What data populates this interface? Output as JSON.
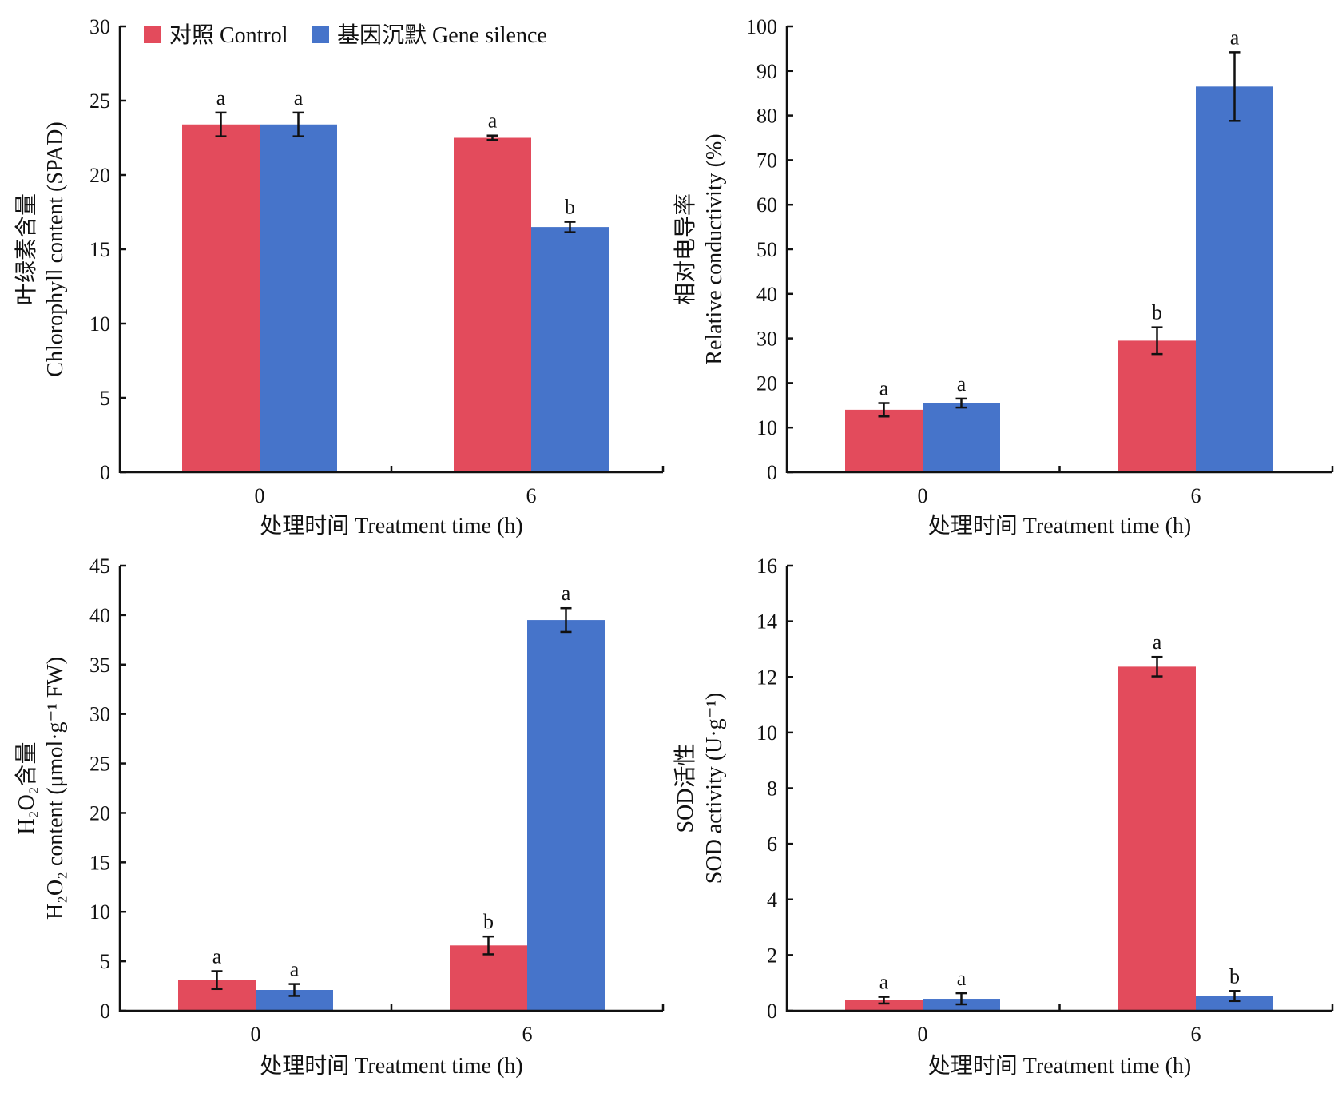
{
  "colors": {
    "control": "#e34b5c",
    "silence": "#4674ca",
    "axis": "#111111"
  },
  "legend": {
    "control": "对照 Control",
    "silence": "基因沉默 Gene silence"
  },
  "chart_data": [
    {
      "type": "bar",
      "categories": [
        "0",
        "6"
      ],
      "xlabel": "处理时间 Treatment time (h)",
      "ylabel_cn": "叶绿素含量",
      "ylabel_en": "Chlorophyll content (SPAD)",
      "ylim": [
        0,
        30
      ],
      "yticks": [
        "0",
        "5",
        "10",
        "15",
        "20",
        "25",
        "30"
      ],
      "series": [
        {
          "name": "对照 Control",
          "values": [
            23.4,
            22.5
          ],
          "errors": [
            0.8,
            0.15
          ],
          "letters": [
            "a",
            "a"
          ]
        },
        {
          "name": "基因沉默 Gene silence",
          "values": [
            23.4,
            16.5
          ],
          "errors": [
            0.8,
            0.35
          ],
          "letters": [
            "a",
            "b"
          ]
        }
      ]
    },
    {
      "type": "bar",
      "categories": [
        "0",
        "6"
      ],
      "xlabel": "处理时间 Treatment time (h)",
      "ylabel_cn": "相对电导率",
      "ylabel_en": "Relative conductivity (%)",
      "ylim": [
        0,
        100
      ],
      "yticks": [
        "0",
        "10",
        "20",
        "30",
        "40",
        "50",
        "60",
        "70",
        "80",
        "90",
        "100"
      ],
      "series": [
        {
          "name": "对照 Control",
          "values": [
            14,
            29.5
          ],
          "errors": [
            1.5,
            3
          ],
          "letters": [
            "a",
            "b"
          ]
        },
        {
          "name": "基因沉默 Gene silence",
          "values": [
            15.5,
            86.5
          ],
          "errors": [
            1,
            7.7
          ],
          "letters": [
            "a",
            "a"
          ]
        }
      ]
    },
    {
      "type": "bar",
      "categories": [
        "0",
        "6"
      ],
      "xlabel": "处理时间 Treatment time (h)",
      "ylabel_cn": "H₂O₂含量",
      "ylabel_en": "H₂O₂ content (μmol·g⁻¹ FW)",
      "ylim": [
        0,
        45
      ],
      "yticks": [
        "0",
        "5",
        "10",
        "15",
        "20",
        "25",
        "30",
        "35",
        "40",
        "45"
      ],
      "series": [
        {
          "name": "对照 Control",
          "values": [
            3.1,
            6.6
          ],
          "errors": [
            0.9,
            0.9
          ],
          "letters": [
            "a",
            "b"
          ]
        },
        {
          "name": "基因沉默 Gene silence",
          "values": [
            2.1,
            39.5
          ],
          "errors": [
            0.6,
            1.2
          ],
          "letters": [
            "a",
            "a"
          ]
        }
      ]
    },
    {
      "type": "bar",
      "categories": [
        "0",
        "6"
      ],
      "xlabel": "处理时间 Treatment time (h)",
      "ylabel_cn": "SOD活性",
      "ylabel_en": "SOD activity (U·g⁻¹)",
      "ylim": [
        0,
        16
      ],
      "yticks": [
        "0",
        "2",
        "4",
        "6",
        "8",
        "10",
        "12",
        "14",
        "16"
      ],
      "series": [
        {
          "name": "对照 Control",
          "values": [
            0.38,
            12.37
          ],
          "errors": [
            0.12,
            0.35
          ],
          "letters": [
            "a",
            "a"
          ]
        },
        {
          "name": "基因沉默 Gene silence",
          "values": [
            0.43,
            0.53
          ],
          "errors": [
            0.2,
            0.18
          ],
          "letters": [
            "a",
            "b"
          ]
        }
      ]
    }
  ]
}
